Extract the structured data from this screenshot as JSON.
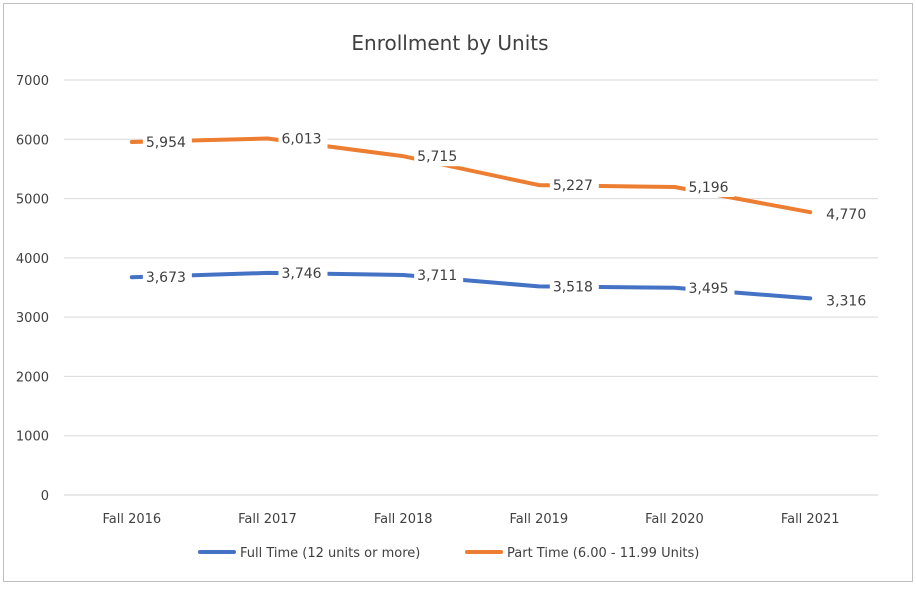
{
  "chart_data": {
    "type": "line",
    "title": "Enrollment by Units",
    "categories": [
      "Fall 2016",
      "Fall 2017",
      "Fall 2018",
      "Fall 2019",
      "Fall 2020",
      "Fall 2021"
    ],
    "ylim": [
      0,
      7000
    ],
    "yticks": [
      0,
      1000,
      2000,
      3000,
      4000,
      5000,
      6000,
      7000
    ],
    "grid": true,
    "legend_position": "bottom",
    "series": [
      {
        "name": "Full Time (12 units or more)",
        "color": "#4472C4",
        "values": [
          3673,
          3746,
          3711,
          3518,
          3495,
          3316
        ],
        "labels": [
          "3,673",
          "3,746",
          "3,711",
          "3,518",
          "3,495",
          "3,316"
        ]
      },
      {
        "name": "Part Time (6.00 - 11.99 Units)",
        "color": "#ED7D31",
        "values": [
          5954,
          6013,
          5715,
          5227,
          5196,
          4770
        ],
        "labels": [
          "5,954",
          "6,013",
          "5,715",
          "5,227",
          "5,196",
          "4,770"
        ]
      }
    ]
  }
}
